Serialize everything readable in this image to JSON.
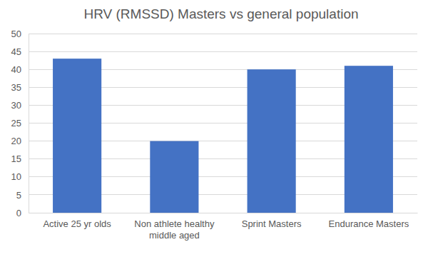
{
  "chart_data": {
    "type": "bar",
    "title": "HRV (RMSSD) Masters vs general population",
    "categories": [
      "Active 25 yr olds",
      "Non athlete healthy middle aged",
      "Sprint Masters",
      "Endurance Masters"
    ],
    "values": [
      43,
      20,
      40,
      41
    ],
    "color": "#4472c4",
    "ylim": [
      0,
      50
    ],
    "yticks": [
      0,
      5,
      10,
      15,
      20,
      25,
      30,
      35,
      40,
      45,
      50
    ],
    "grid": true
  }
}
